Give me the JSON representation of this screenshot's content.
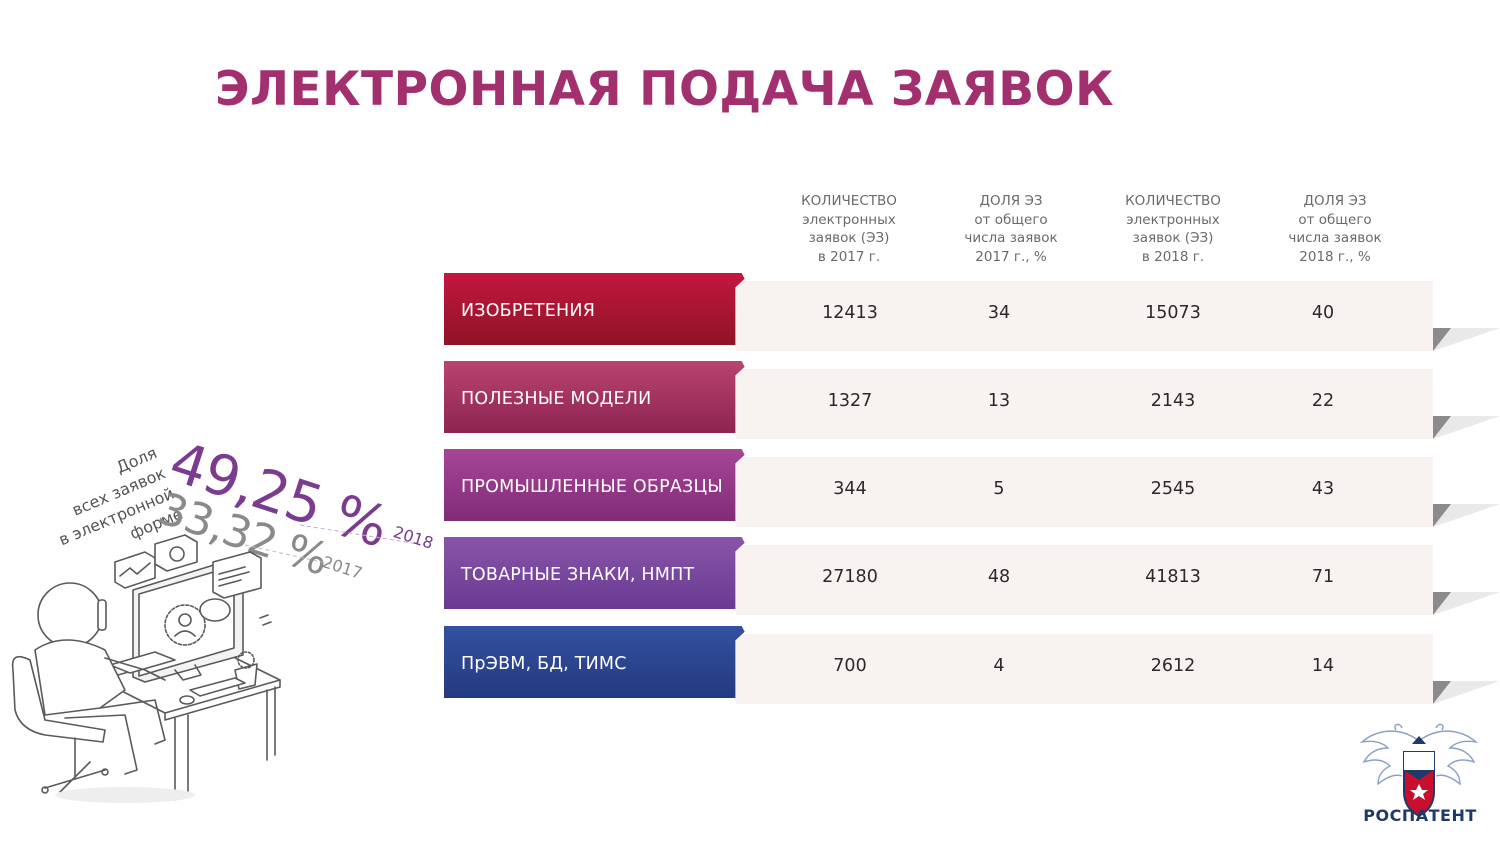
{
  "title": "ЭЛЕКТРОННАЯ ПОДАЧА ЗАЯВОК",
  "column_headers": [
    [
      "КОЛИЧЕСТВО",
      "электронных",
      "заявок (ЭЗ)",
      "в 2017 г."
    ],
    [
      "ДОЛЯ ЭЗ",
      "от общего",
      "числа заявок",
      "2017 г., %"
    ],
    [
      "КОЛИЧЕСТВО",
      "электронных",
      "заявок (ЭЗ)",
      "в 2018 г."
    ],
    [
      "ДОЛЯ ЭЗ",
      "от общего",
      "числа заявок",
      "2018 г., %"
    ]
  ],
  "rows": [
    {
      "label": "ИЗОБРЕТЕНИЯ",
      "count_2017": "12413",
      "share_2017": "34",
      "count_2018": "15073",
      "share_2018": "40",
      "color_top": "#c5163f",
      "color_bottom": "#8e1426"
    },
    {
      "label": "ПОЛЕЗНЫЕ МОДЕЛИ",
      "count_2017": "1327",
      "share_2017": "13",
      "count_2018": "2143",
      "share_2018": "22",
      "color_top": "#b94470",
      "color_bottom": "#8d2450"
    },
    {
      "label": "ПРОМЫШЛЕННЫЕ ОБРАЗЦЫ",
      "count_2017": "344",
      "share_2017": "5",
      "count_2018": "2545",
      "share_2018": "43",
      "color_top": "#a84597",
      "color_bottom": "#7f2c78"
    },
    {
      "label": "ТОВАРНЫЕ ЗНАКИ, НМПТ",
      "count_2017": "27180",
      "share_2017": "48",
      "count_2018": "41813",
      "share_2018": "71",
      "color_top": "#8855a8",
      "color_bottom": "#6a3a93"
    },
    {
      "label": "ПрЭВМ, БД, ТИМС",
      "count_2017": "700",
      "share_2017": "4",
      "count_2018": "2612",
      "share_2018": "14",
      "color_top": "#3351a0",
      "color_bottom": "#243a80"
    }
  ],
  "share_block": {
    "label_lines": [
      "Доля",
      "всех заявок",
      "в электронной",
      "форме"
    ],
    "pct_2018": "49,25 %",
    "year_2018": "2018",
    "pct_2017": "33,32 %",
    "year_2017": "2017"
  },
  "logo": {
    "text": "РОСПАТЕНТ",
    "icon": "double-headed-eagle-emblem-icon"
  },
  "illustration": {
    "icon": "person-at-computer-illustration"
  }
}
